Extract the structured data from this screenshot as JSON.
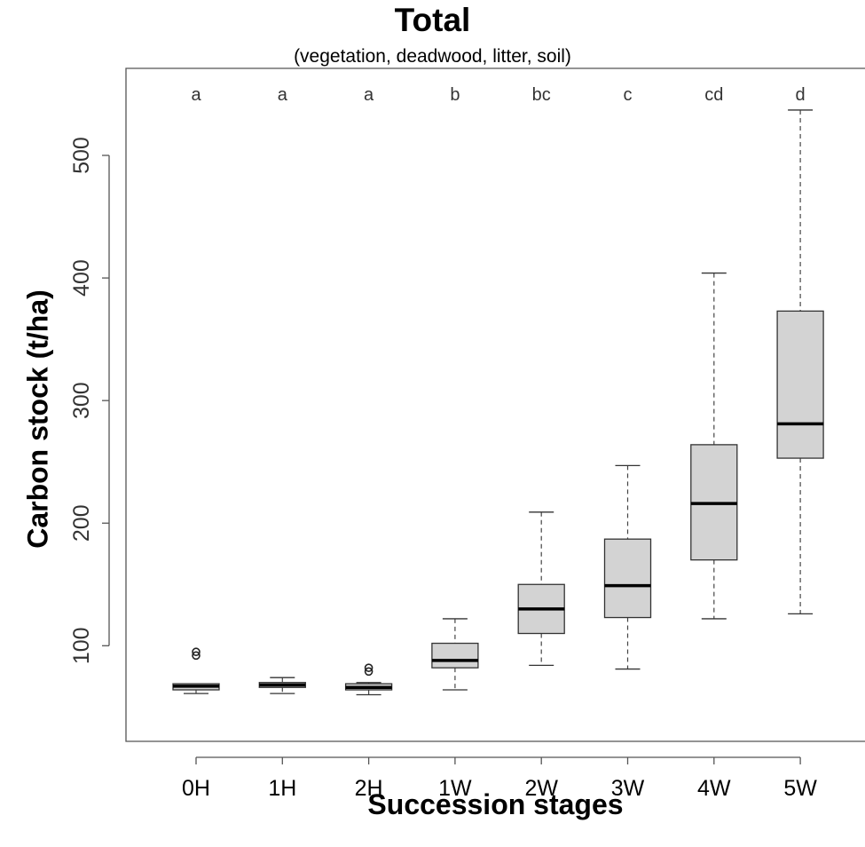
{
  "chart_data": {
    "type": "box",
    "title": "Total",
    "subtitle": "(vegetation, deadwood, litter, soil)",
    "xlabel": "Succession stages",
    "ylabel": "Carbon stock (t/ha)",
    "ylim": [
      22,
      571
    ],
    "yticks": [
      100,
      200,
      300,
      400,
      500
    ],
    "categories": [
      "0H",
      "1H",
      "2H",
      "1W",
      "2W",
      "3W",
      "4W",
      "5W"
    ],
    "letters": [
      "a",
      "a",
      "a",
      "b",
      "bc",
      "c",
      "cd",
      "d"
    ],
    "boxes": [
      {
        "min": 61,
        "q1": 64,
        "median": 67,
        "q3": 69,
        "max": 69,
        "outliers": [
          92,
          95
        ]
      },
      {
        "min": 61,
        "q1": 66,
        "median": 68,
        "q3": 70,
        "max": 74,
        "outliers": []
      },
      {
        "min": 60,
        "q1": 64,
        "median": 66,
        "q3": 69,
        "max": 70,
        "outliers": [
          79,
          82
        ]
      },
      {
        "min": 64,
        "q1": 82,
        "median": 88,
        "q3": 102,
        "max": 122,
        "outliers": []
      },
      {
        "min": 84,
        "q1": 110,
        "median": 130,
        "q3": 150,
        "max": 209,
        "outliers": []
      },
      {
        "min": 81,
        "q1": 123,
        "median": 149,
        "q3": 187,
        "max": 247,
        "outliers": []
      },
      {
        "min": 122,
        "q1": 170,
        "median": 216,
        "q3": 264,
        "max": 404,
        "outliers": []
      },
      {
        "min": 126,
        "q1": 253,
        "median": 281,
        "q3": 373,
        "max": 537,
        "outliers": []
      }
    ],
    "box_fill": "#d3d3d3",
    "grid": false,
    "legend": "none"
  }
}
